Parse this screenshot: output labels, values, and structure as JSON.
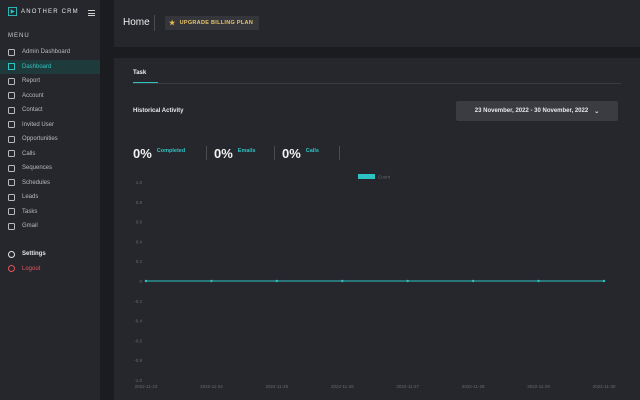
{
  "app": {
    "name": "ANOTHER CRM"
  },
  "sidebar": {
    "menu_title": "MENU",
    "items": [
      {
        "label": "Admin Dashboard",
        "icon": "admin-dashboard-icon"
      },
      {
        "label": "Dashboard",
        "icon": "dashboard-grid-icon",
        "active": true
      },
      {
        "label": "Report",
        "icon": "report-icon"
      },
      {
        "label": "Account",
        "icon": "account-icon"
      },
      {
        "label": "Contact",
        "icon": "contact-icon"
      },
      {
        "label": "Invited User",
        "icon": "invited-user-icon"
      },
      {
        "label": "Opportunities",
        "icon": "opportunities-icon"
      },
      {
        "label": "Calls",
        "icon": "phone-icon"
      },
      {
        "label": "Sequences",
        "icon": "sequences-icon"
      },
      {
        "label": "Schedules",
        "icon": "calendar-icon"
      },
      {
        "label": "Leads",
        "icon": "leads-icon"
      },
      {
        "label": "Tasks",
        "icon": "tasks-icon"
      },
      {
        "label": "Gmail",
        "icon": "mail-icon"
      }
    ],
    "settings_label": "Settings",
    "logout_label": "Logout"
  },
  "header": {
    "title": "Home",
    "upgrade_label": "UPGRADE BILLING PLAN"
  },
  "main": {
    "tab_label": "Task",
    "historical_label": "Historical Activity",
    "date_range": "23 November, 2022 - 30 November, 2022",
    "stats": [
      {
        "value": "0%",
        "label": "Completed"
      },
      {
        "value": "0%",
        "label": "Emails"
      },
      {
        "value": "0%",
        "label": "Calls"
      }
    ]
  },
  "colors": {
    "accent": "#2ec3c3",
    "logout": "#e0555b",
    "upgrade": "#e9c46a"
  },
  "chart_data": {
    "type": "line",
    "x": [
      "2022-11-23",
      "2022-11-24",
      "2022-11-25",
      "2022-11-26",
      "2022-11-27",
      "2022-11-28",
      "2022-11-29",
      "2022-11-30"
    ],
    "series": [
      {
        "name": "Count",
        "values": [
          0,
          0,
          0,
          0,
          0,
          0,
          0,
          0
        ]
      }
    ],
    "ylim": [
      -1.0,
      1.0
    ],
    "yticks": [
      "1.0",
      "0.8",
      "0.6",
      "0.4",
      "0.2",
      "0",
      "-0.2",
      "-0.4",
      "-0.6",
      "-0.8",
      "-1.0"
    ],
    "legend": "top-center",
    "grid": false
  }
}
